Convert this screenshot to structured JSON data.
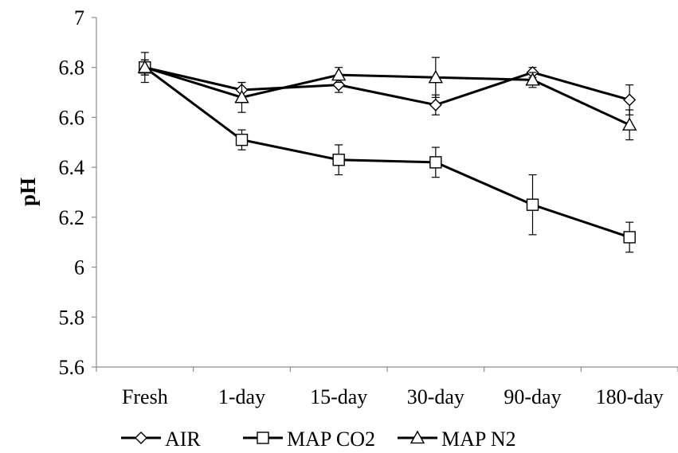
{
  "chart_data": {
    "type": "line",
    "title": "",
    "xlabel": "",
    "ylabel": "pH",
    "ylim": [
      5.6,
      7
    ],
    "yticks": [
      5.6,
      5.8,
      6,
      6.2,
      6.4,
      6.6,
      6.8,
      7
    ],
    "ytick_labels": [
      "5.6",
      "5.8",
      "6",
      "6.2",
      "6.4",
      "6.6",
      "6.8",
      "7"
    ],
    "categories": [
      "Fresh",
      "1-day",
      "15-day",
      "30-day",
      "90-day",
      "180-day"
    ],
    "grid": false,
    "legend_position": "bottom",
    "series": [
      {
        "name": "AIR",
        "marker": "diamond",
        "values": [
          6.8,
          6.71,
          6.73,
          6.65,
          6.78,
          6.67
        ],
        "errors": [
          0.03,
          0.03,
          0.03,
          0.04,
          0.02,
          0.06
        ]
      },
      {
        "name": "MAP CO2",
        "marker": "square",
        "values": [
          6.8,
          6.51,
          6.43,
          6.42,
          6.25,
          6.12
        ],
        "errors": [
          0.03,
          0.04,
          0.06,
          0.06,
          0.12,
          0.06
        ]
      },
      {
        "name": "MAP N2",
        "marker": "triangle",
        "values": [
          6.8,
          6.68,
          6.77,
          6.76,
          6.75,
          6.57
        ],
        "errors": [
          0.06,
          0.06,
          0.03,
          0.08,
          0.03,
          0.06
        ]
      }
    ],
    "colors": {
      "line": "#000000",
      "marker_fill": "#ffffff",
      "axis": "#8c8c8c"
    }
  }
}
